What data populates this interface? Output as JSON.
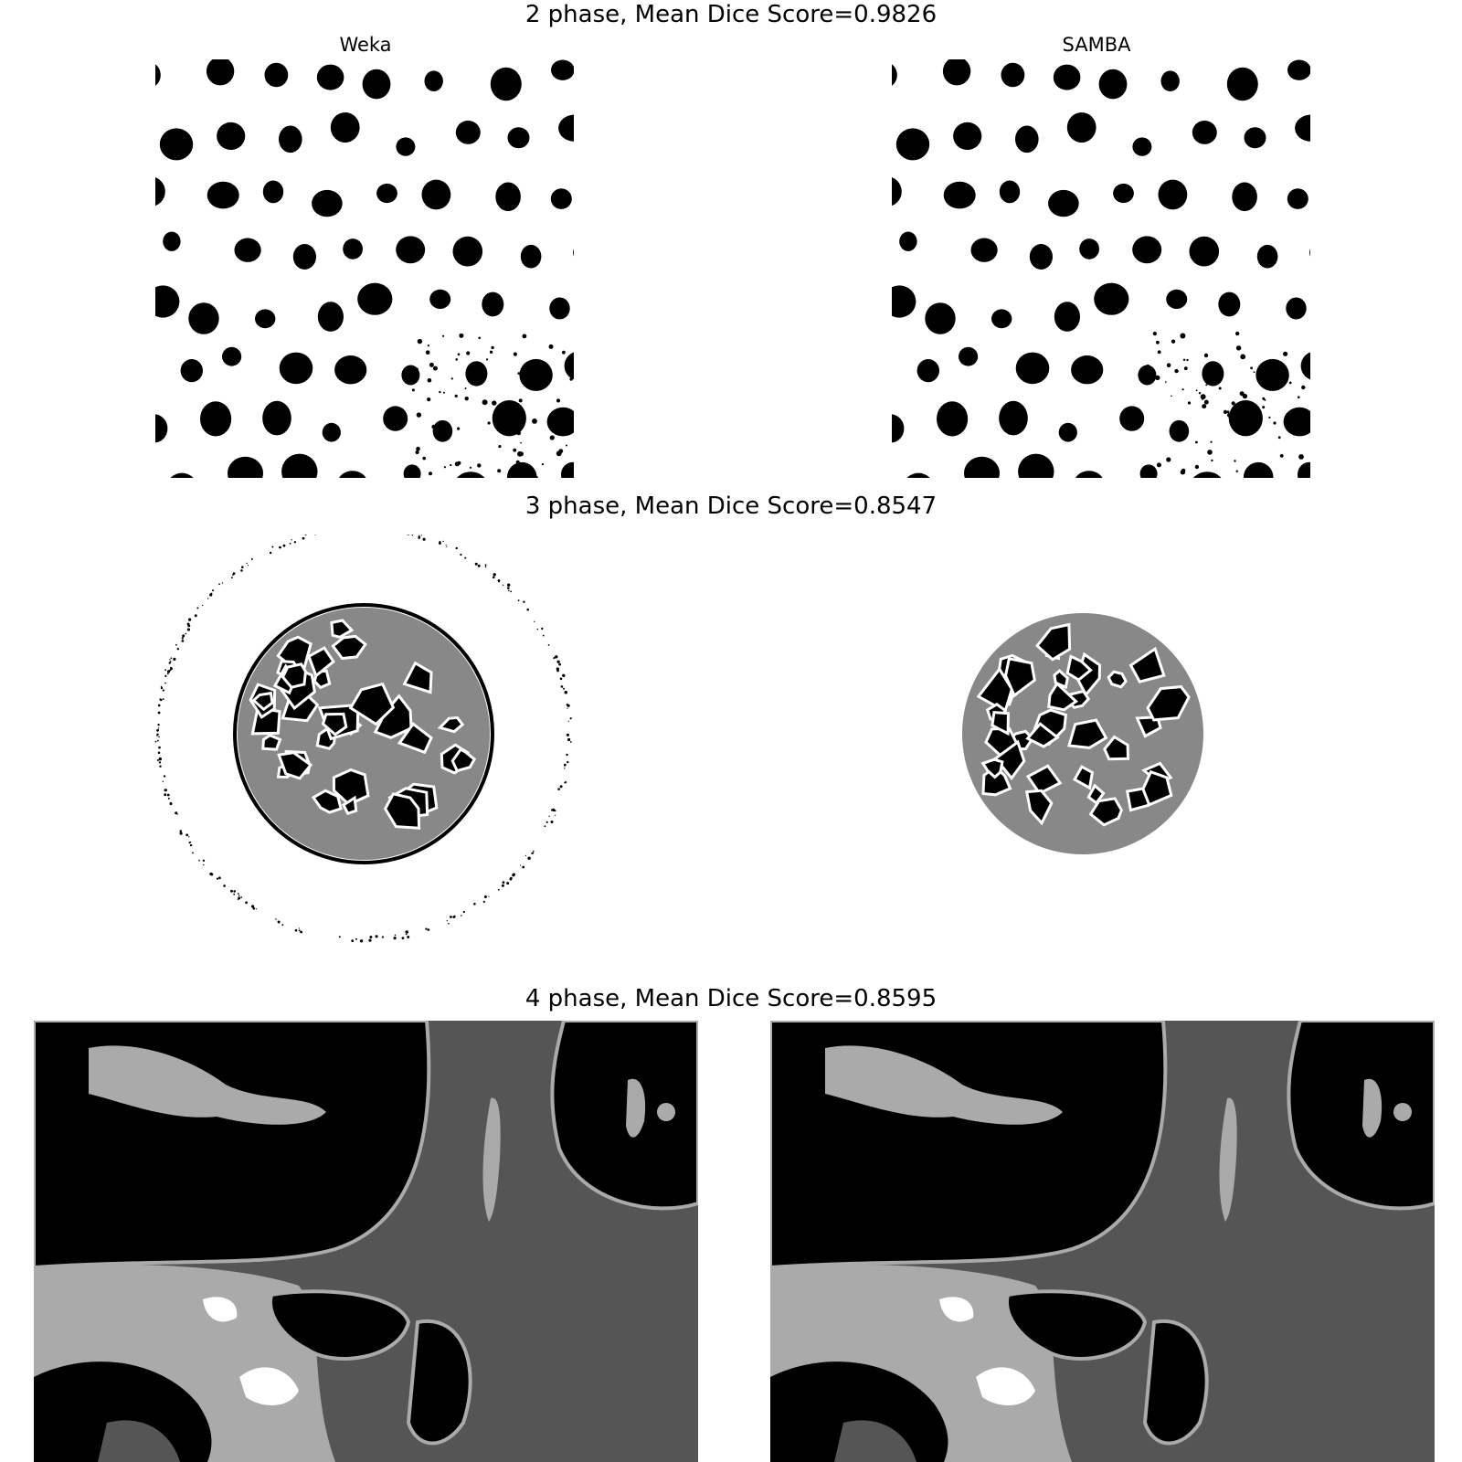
{
  "rows": [
    {
      "title": "2 phase, Mean Dice Score=0.9826"
    },
    {
      "title": "3 phase, Mean Dice Score=0.8547"
    },
    {
      "title": "4 phase, Mean Dice Score=0.8595"
    }
  ],
  "columns": {
    "left": "Weka",
    "right": "SAMBA"
  },
  "colors": {
    "black": "#000000",
    "dark_gray": "#555555",
    "mid_gray": "#888888",
    "light_gray": "#aaaaaa",
    "white": "#ffffff"
  }
}
